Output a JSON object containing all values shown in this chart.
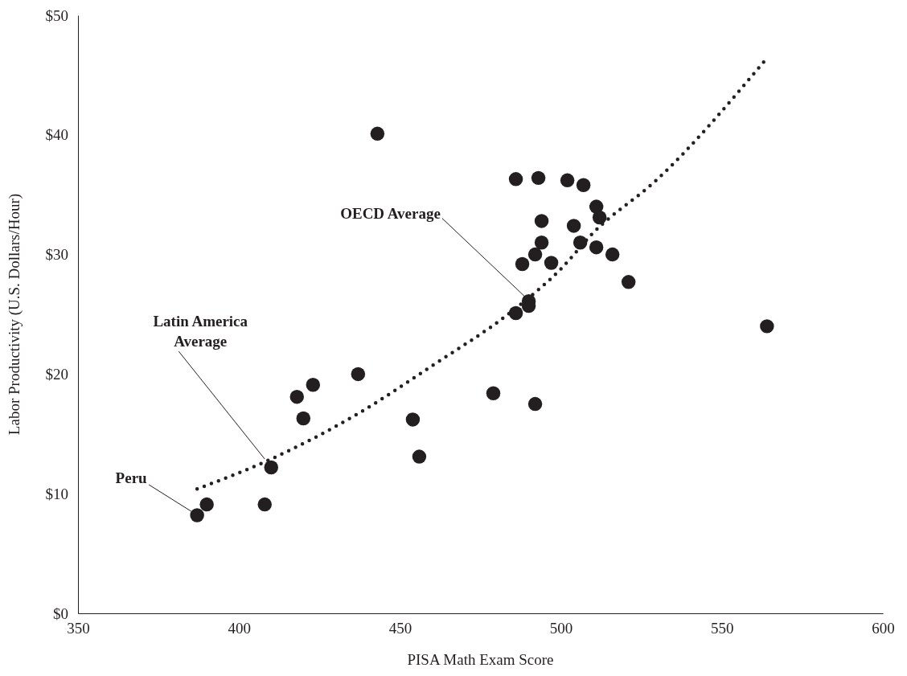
{
  "chart_data": {
    "type": "scatter",
    "xlabel": "PISA Math Exam Score",
    "ylabel": "Labor Productivity (U.S. Dollars/Hour)",
    "xlim": [
      350,
      600
    ],
    "xticks": [
      350,
      400,
      450,
      500,
      550,
      600
    ],
    "ylim": [
      0,
      50
    ],
    "yticks": [
      {
        "value": 0,
        "label": "$0"
      },
      {
        "value": 10,
        "label": "$10"
      },
      {
        "value": 20,
        "label": "$20"
      },
      {
        "value": 30,
        "label": "$30"
      },
      {
        "value": 40,
        "label": "$40"
      },
      {
        "value": 50,
        "label": "$50"
      }
    ],
    "grid": false,
    "series": [
      {
        "color": "#231f20",
        "marker": "circle",
        "x": [
          387,
          390,
          408,
          410,
          418,
          420,
          423,
          437,
          443,
          454,
          456,
          479,
          486,
          486,
          488,
          490,
          490,
          492,
          492,
          493,
          494,
          494,
          497,
          502,
          504,
          506,
          507,
          511,
          511,
          512,
          516,
          521,
          564
        ],
        "values": [
          8.2,
          9.1,
          9.1,
          12.2,
          18.1,
          16.3,
          19.1,
          20.0,
          40.1,
          16.2,
          13.1,
          18.4,
          36.3,
          25.1,
          29.2,
          26.1,
          25.7,
          30.0,
          17.5,
          36.4,
          32.8,
          31.0,
          29.3,
          36.2,
          32.4,
          31.0,
          35.8,
          34.0,
          30.6,
          33.1,
          30.0,
          27.7,
          24.0
        ]
      },
      {
        "type": "line",
        "color": "#231f20",
        "line_style": "dotted",
        "marker": "none",
        "x": [
          387,
          410,
          437,
          460,
          485,
          500,
          510,
          530,
          563
        ],
        "values": [
          10.4,
          12.9,
          16.7,
          20.7,
          25.3,
          28.8,
          31.8,
          36.3,
          46.1
        ]
      }
    ],
    "annotations": [
      {
        "text": "Peru",
        "x": 387,
        "y": 8.2
      },
      {
        "text": "Latin America Average",
        "x": 408,
        "y": 12.9
      },
      {
        "text": "OECD Average",
        "x": 489.5,
        "y": 26.3
      }
    ]
  }
}
